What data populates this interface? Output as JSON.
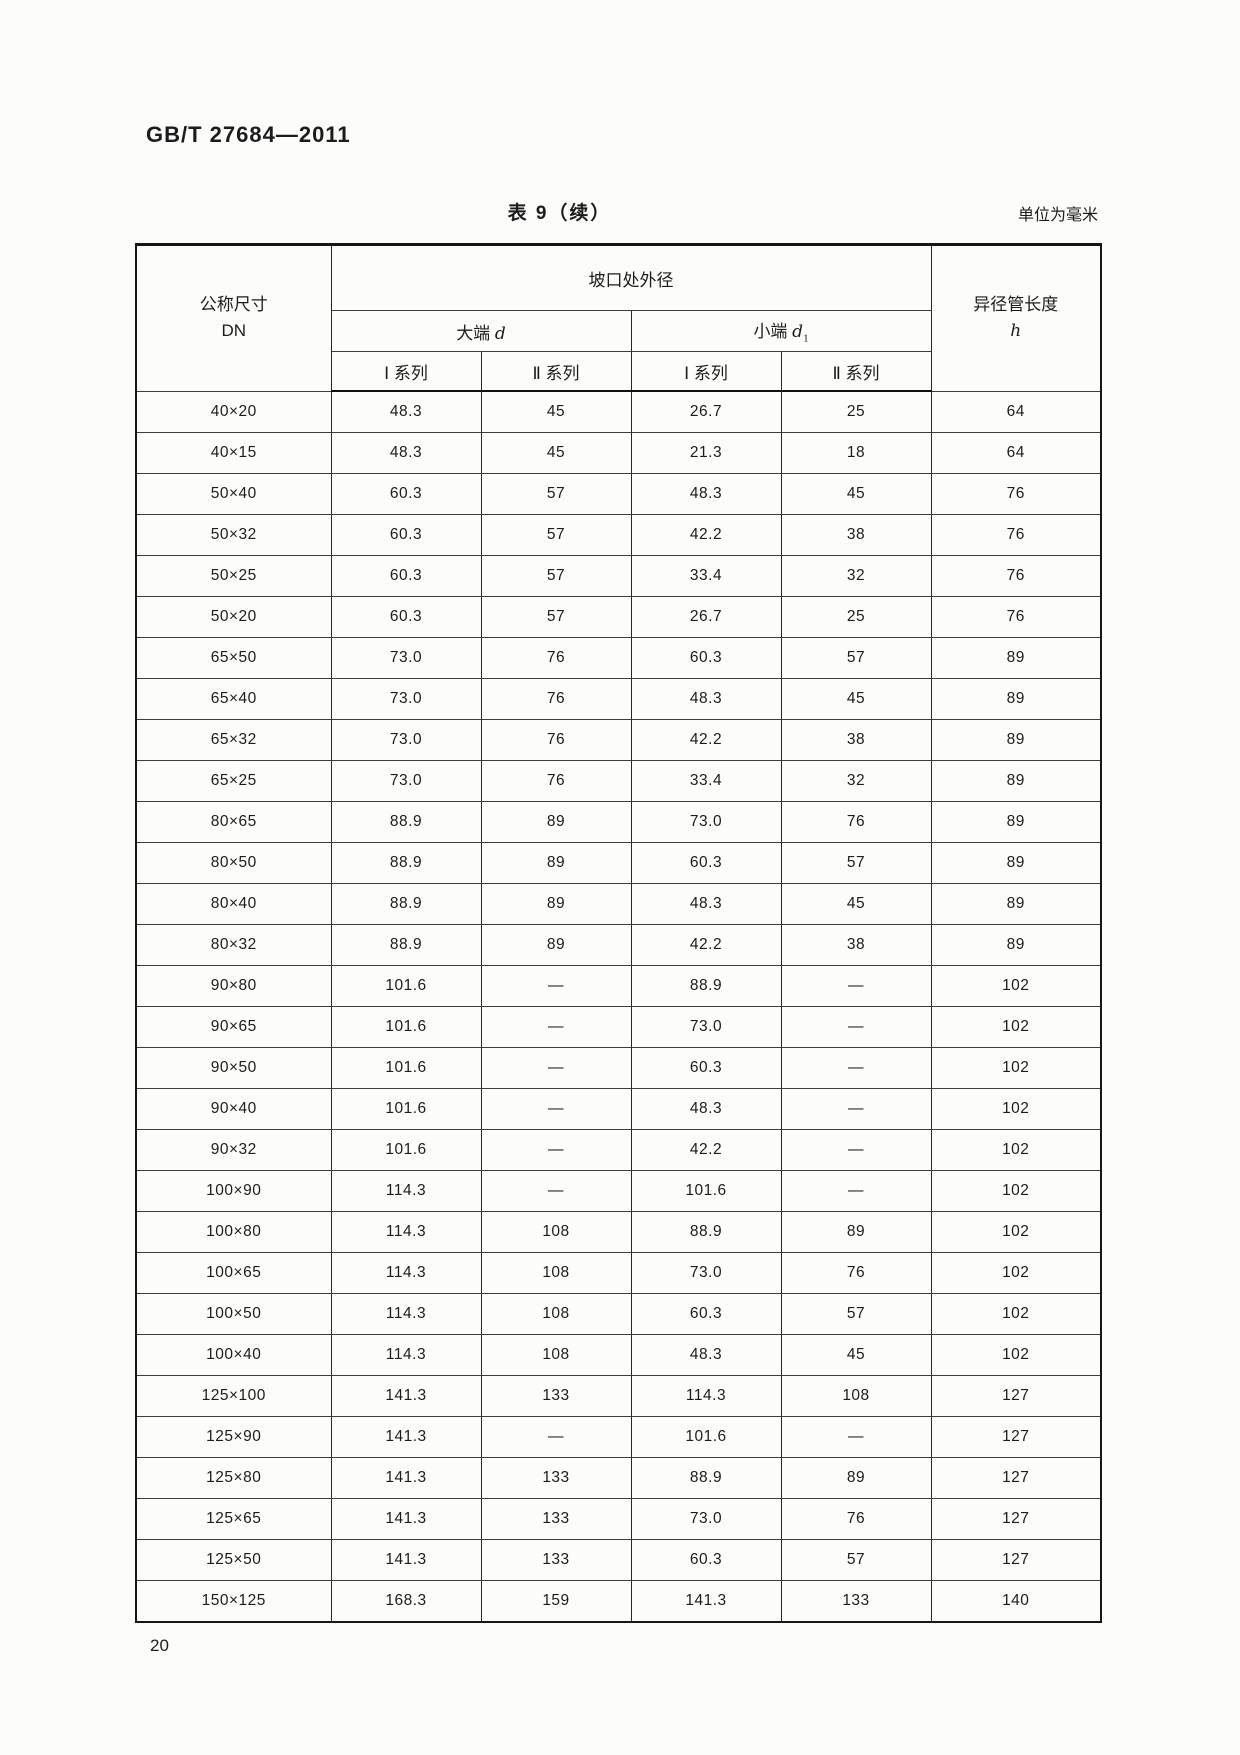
{
  "page": {
    "doc_number": "GB/T 27684—2011",
    "page_number": "20"
  },
  "table": {
    "title": "表 9（续）",
    "unit_note": "单位为毫米",
    "header": {
      "dn_line1": "公称尺寸",
      "dn_line2": "DN",
      "od_group": "坡口处外径",
      "big_end_label": "大端",
      "big_end_var": "d",
      "small_end_label": "小端",
      "small_end_var": "d",
      "small_end_sub": "1",
      "series_i": "Ⅰ 系列",
      "series_ii": "Ⅱ 系列",
      "length_line1": "异径管长度",
      "length_var": "h"
    },
    "columns": [
      "dn",
      "big_end_series_i",
      "big_end_series_ii",
      "small_end_series_i",
      "small_end_series_ii",
      "length_h"
    ],
    "rows": [
      [
        "40×20",
        "48.3",
        "45",
        "26.7",
        "25",
        "64"
      ],
      [
        "40×15",
        "48.3",
        "45",
        "21.3",
        "18",
        "64"
      ],
      [
        "50×40",
        "60.3",
        "57",
        "48.3",
        "45",
        "76"
      ],
      [
        "50×32",
        "60.3",
        "57",
        "42.2",
        "38",
        "76"
      ],
      [
        "50×25",
        "60.3",
        "57",
        "33.4",
        "32",
        "76"
      ],
      [
        "50×20",
        "60.3",
        "57",
        "26.7",
        "25",
        "76"
      ],
      [
        "65×50",
        "73.0",
        "76",
        "60.3",
        "57",
        "89"
      ],
      [
        "65×40",
        "73.0",
        "76",
        "48.3",
        "45",
        "89"
      ],
      [
        "65×32",
        "73.0",
        "76",
        "42.2",
        "38",
        "89"
      ],
      [
        "65×25",
        "73.0",
        "76",
        "33.4",
        "32",
        "89"
      ],
      [
        "80×65",
        "88.9",
        "89",
        "73.0",
        "76",
        "89"
      ],
      [
        "80×50",
        "88.9",
        "89",
        "60.3",
        "57",
        "89"
      ],
      [
        "80×40",
        "88.9",
        "89",
        "48.3",
        "45",
        "89"
      ],
      [
        "80×32",
        "88.9",
        "89",
        "42.2",
        "38",
        "89"
      ],
      [
        "90×80",
        "101.6",
        "—",
        "88.9",
        "—",
        "102"
      ],
      [
        "90×65",
        "101.6",
        "—",
        "73.0",
        "—",
        "102"
      ],
      [
        "90×50",
        "101.6",
        "—",
        "60.3",
        "—",
        "102"
      ],
      [
        "90×40",
        "101.6",
        "—",
        "48.3",
        "—",
        "102"
      ],
      [
        "90×32",
        "101.6",
        "—",
        "42.2",
        "—",
        "102"
      ],
      [
        "100×90",
        "114.3",
        "—",
        "101.6",
        "—",
        "102"
      ],
      [
        "100×80",
        "114.3",
        "108",
        "88.9",
        "89",
        "102"
      ],
      [
        "100×65",
        "114.3",
        "108",
        "73.0",
        "76",
        "102"
      ],
      [
        "100×50",
        "114.3",
        "108",
        "60.3",
        "57",
        "102"
      ],
      [
        "100×40",
        "114.3",
        "108",
        "48.3",
        "45",
        "102"
      ],
      [
        "125×100",
        "141.3",
        "133",
        "114.3",
        "108",
        "127"
      ],
      [
        "125×90",
        "141.3",
        "—",
        "101.6",
        "—",
        "127"
      ],
      [
        "125×80",
        "141.3",
        "133",
        "88.9",
        "89",
        "127"
      ],
      [
        "125×65",
        "141.3",
        "133",
        "73.0",
        "76",
        "127"
      ],
      [
        "125×50",
        "141.3",
        "133",
        "60.3",
        "57",
        "127"
      ],
      [
        "150×125",
        "168.3",
        "159",
        "141.3",
        "133",
        "140"
      ]
    ]
  }
}
